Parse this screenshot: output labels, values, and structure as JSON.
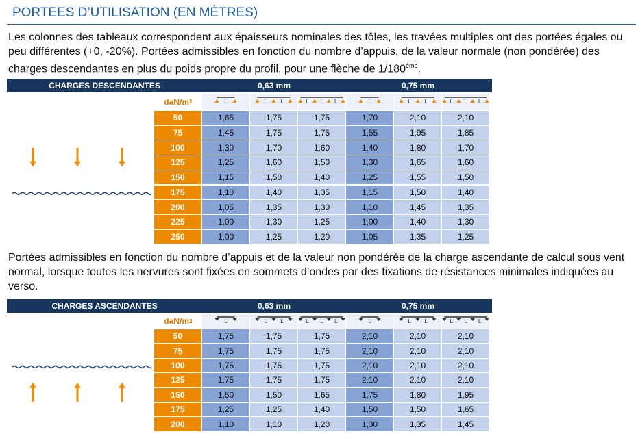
{
  "header": {
    "title": "PORTEES D’UTILISATION (EN MÈTRES)"
  },
  "intro": {
    "text": "Les colonnes des tableaux correspondent aux épaisseurs nominales des tôles, les travées multiples ont des portées égales ou peu différentes (+0, -20%).  Portées admissibles en fonction du nombre d’appuis, de la valeur normale (non pondérée) des charges descendantes en plus du poids propre du profil, pour une flèche de 1/180",
    "sup": "ème",
    "end": "."
  },
  "note": "Portées admissibles en fonction du nombre d’appuis et de la valeur non pondérée de la charge ascendante de calcul sous vent normal, lorsque toutes les nervures sont fixées en sommets d’ondes par des fixations de résistances minimales indiquées au verso.",
  "tables": [
    {
      "title": "CHARGES DESCENDANTES",
      "groups": [
        "0,63 mm",
        "0,75 mm"
      ],
      "unit": "daN/m",
      "unit_sup": "2",
      "span_symbol": "L",
      "rows": [
        {
          "load": "50",
          "values": [
            "1,65",
            "1,75",
            "1,75",
            "1,70",
            "2,10",
            "2,10"
          ]
        },
        {
          "load": "75",
          "values": [
            "1,45",
            "1,75",
            "1,75",
            "1,55",
            "1,95",
            "1,85"
          ]
        },
        {
          "load": "100",
          "values": [
            "1,30",
            "1,70",
            "1,60",
            "1,40",
            "1,80",
            "1,70"
          ]
        },
        {
          "load": "125",
          "values": [
            "1,25",
            "1,60",
            "1,50",
            "1,30",
            "1,65",
            "1,60"
          ]
        },
        {
          "load": "150",
          "values": [
            "1,15",
            "1,50",
            "1,40",
            "1,25",
            "1,55",
            "1,50"
          ]
        },
        {
          "load": "175",
          "values": [
            "1,10",
            "1,40",
            "1,35",
            "1,15",
            "1,50",
            "1,40"
          ]
        },
        {
          "load": "200",
          "values": [
            "1,05",
            "1,35",
            "1,30",
            "1,10",
            "1,45",
            "1,35"
          ]
        },
        {
          "load": "225",
          "values": [
            "1,00",
            "1,30",
            "1,25",
            "1,00",
            "1,40",
            "1,30"
          ]
        },
        {
          "load": "250",
          "values": [
            "1,00",
            "1,25",
            "1,20",
            "1,05",
            "1,35",
            "1,25"
          ]
        }
      ]
    },
    {
      "title": "CHARGES ASCENDANTES",
      "groups": [
        "0,63 mm",
        "0,75 mm"
      ],
      "unit": "daN/m",
      "unit_sup": "2",
      "span_symbol": "L",
      "rows": [
        {
          "load": "50",
          "values": [
            "1,75",
            "1,75",
            "1,75",
            "2,10",
            "2,10",
            "2,10"
          ]
        },
        {
          "load": "75",
          "values": [
            "1,75",
            "1,75",
            "1,75",
            "2,10",
            "2,10",
            "2,10"
          ]
        },
        {
          "load": "100",
          "values": [
            "1,75",
            "1,75",
            "1,75",
            "2,10",
            "2,10",
            "2,10"
          ]
        },
        {
          "load": "125",
          "values": [
            "1,75",
            "1,75",
            "1,75",
            "2,10",
            "2,10",
            "2,10"
          ]
        },
        {
          "load": "150",
          "values": [
            "1,50",
            "1,50",
            "1,65",
            "1,75",
            "1,80",
            "1,95"
          ]
        },
        {
          "load": "175",
          "values": [
            "1,25",
            "1,25",
            "1,40",
            "1,50",
            "1,50",
            "1,65"
          ]
        },
        {
          "load": "200",
          "values": [
            "1,10",
            "1,10",
            "1,20",
            "1,30",
            "1,35",
            "1,45"
          ]
        }
      ]
    }
  ]
}
